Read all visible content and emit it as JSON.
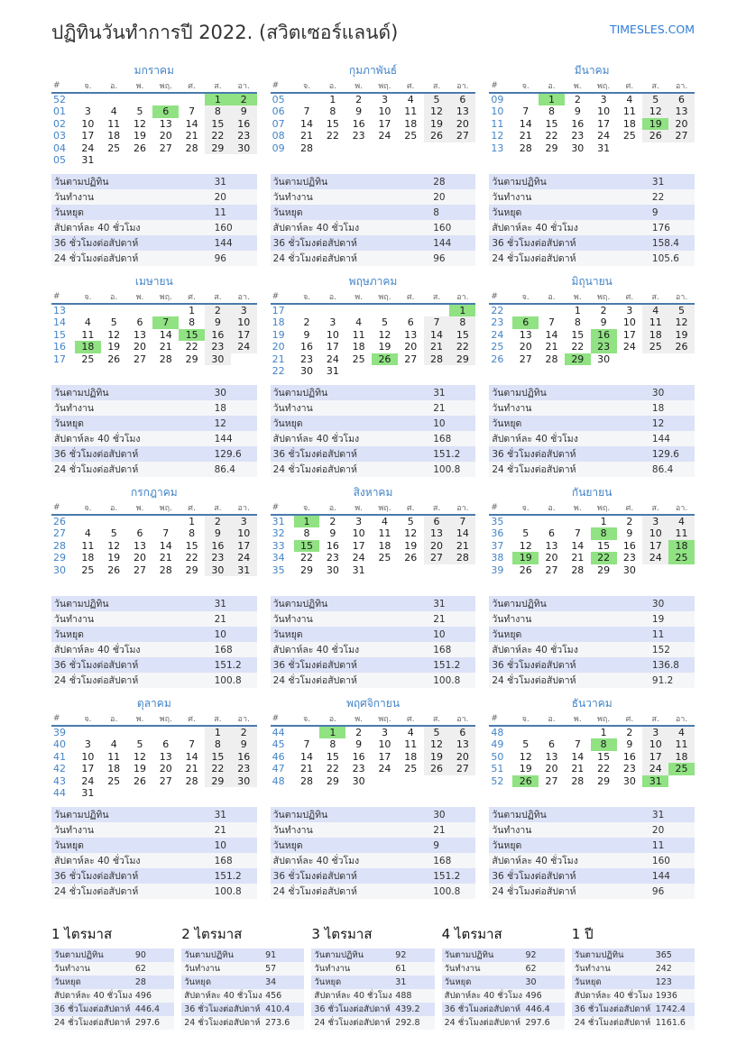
{
  "page": {
    "title": "ปฏิทินวันทำการปี 2022. (สวิตเซอร์แลนด์)",
    "brand": "TIMESLES.COM"
  },
  "colors": {
    "accent_blue": "#4384c6",
    "brand_blue": "#2e7cd9",
    "header_rule_blue": "#4a7aad",
    "holiday_green": "#90e283",
    "weekend_gray": "#efefef",
    "stat_row_alt": "#dce2f7"
  },
  "calendar": {
    "day_headers": [
      "#",
      "จ.",
      "อ.",
      "พ.",
      "พฤ.",
      "ศ.",
      "ส.",
      "อา."
    ],
    "stat_labels": [
      "วันตามปฏิทิน",
      "วันทำงาน",
      "วันหยุด",
      "สัปดาห์ละ 40 ชั่วโมง",
      "36 ชั่วโมงต่อสัปดาห์",
      "24 ชั่วโมงต่อสัปดาห์"
    ],
    "months": [
      {
        "name": "มกราคม",
        "hl": [
          1,
          2,
          6
        ],
        "stats": [
          31,
          20,
          11,
          160,
          144,
          96
        ],
        "weeks": [
          {
            "w": "52",
            "d": [
              0,
              0,
              0,
              0,
              0,
              1,
              2
            ]
          },
          {
            "w": "01",
            "d": [
              3,
              4,
              5,
              6,
              7,
              8,
              9
            ]
          },
          {
            "w": "02",
            "d": [
              10,
              11,
              12,
              13,
              14,
              15,
              16
            ]
          },
          {
            "w": "03",
            "d": [
              17,
              18,
              19,
              20,
              21,
              22,
              23
            ]
          },
          {
            "w": "04",
            "d": [
              24,
              25,
              26,
              27,
              28,
              29,
              30
            ]
          },
          {
            "w": "05",
            "d": [
              31,
              0,
              0,
              0,
              0,
              0,
              0
            ]
          }
        ]
      },
      {
        "name": "กุมภาพันธ์",
        "hl": [],
        "stats": [
          28,
          20,
          8,
          160,
          144,
          96
        ],
        "weeks": [
          {
            "w": "05",
            "d": [
              0,
              1,
              2,
              3,
              4,
              5,
              6
            ]
          },
          {
            "w": "06",
            "d": [
              7,
              8,
              9,
              10,
              11,
              12,
              13
            ]
          },
          {
            "w": "07",
            "d": [
              14,
              15,
              16,
              17,
              18,
              19,
              20
            ]
          },
          {
            "w": "08",
            "d": [
              21,
              22,
              23,
              24,
              25,
              26,
              27
            ]
          },
          {
            "w": "09",
            "d": [
              28,
              0,
              0,
              0,
              0,
              0,
              0
            ]
          }
        ]
      },
      {
        "name": "มีนาคม",
        "hl": [
          1,
          19
        ],
        "stats": [
          31,
          22,
          9,
          176,
          158.4,
          105.6
        ],
        "weeks": [
          {
            "w": "09",
            "d": [
              0,
              1,
              2,
              3,
              4,
              5,
              6
            ]
          },
          {
            "w": "10",
            "d": [
              7,
              8,
              9,
              10,
              11,
              12,
              13
            ]
          },
          {
            "w": "11",
            "d": [
              14,
              15,
              16,
              17,
              18,
              19,
              20
            ]
          },
          {
            "w": "12",
            "d": [
              21,
              22,
              23,
              24,
              25,
              26,
              27
            ]
          },
          {
            "w": "13",
            "d": [
              28,
              29,
              30,
              31,
              0,
              0,
              0
            ]
          }
        ]
      },
      {
        "name": "เมษายน",
        "hl": [
          7,
          15,
          18
        ],
        "stats": [
          30,
          18,
          12,
          144,
          129.6,
          86.4
        ],
        "weeks": [
          {
            "w": "13",
            "d": [
              0,
              0,
              0,
              0,
              1,
              2,
              3
            ]
          },
          {
            "w": "14",
            "d": [
              4,
              5,
              6,
              7,
              8,
              9,
              10
            ]
          },
          {
            "w": "15",
            "d": [
              11,
              12,
              13,
              14,
              15,
              16,
              17
            ]
          },
          {
            "w": "16",
            "d": [
              18,
              19,
              20,
              21,
              22,
              23,
              24
            ]
          },
          {
            "w": "17",
            "d": [
              25,
              26,
              27,
              28,
              29,
              30,
              0
            ]
          }
        ]
      },
      {
        "name": "พฤษภาคม",
        "hl": [
          1,
          26
        ],
        "stats": [
          31,
          21,
          10,
          168,
          151.2,
          100.8
        ],
        "weeks": [
          {
            "w": "17",
            "d": [
              0,
              0,
              0,
              0,
              0,
              0,
              1
            ]
          },
          {
            "w": "18",
            "d": [
              2,
              3,
              4,
              5,
              6,
              7,
              8
            ]
          },
          {
            "w": "19",
            "d": [
              9,
              10,
              11,
              12,
              13,
              14,
              15
            ]
          },
          {
            "w": "20",
            "d": [
              16,
              17,
              18,
              19,
              20,
              21,
              22
            ]
          },
          {
            "w": "21",
            "d": [
              23,
              24,
              25,
              26,
              27,
              28,
              29
            ]
          },
          {
            "w": "22",
            "d": [
              30,
              31,
              0,
              0,
              0,
              0,
              0
            ]
          }
        ]
      },
      {
        "name": "มิถุนายน",
        "hl": [
          6,
          16,
          23,
          29
        ],
        "stats": [
          30,
          18,
          12,
          144,
          129.6,
          86.4
        ],
        "weeks": [
          {
            "w": "22",
            "d": [
              0,
              0,
              1,
              2,
              3,
              4,
              5
            ]
          },
          {
            "w": "23",
            "d": [
              6,
              7,
              8,
              9,
              10,
              11,
              12
            ]
          },
          {
            "w": "24",
            "d": [
              13,
              14,
              15,
              16,
              17,
              18,
              19
            ]
          },
          {
            "w": "25",
            "d": [
              20,
              21,
              22,
              23,
              24,
              25,
              26
            ]
          },
          {
            "w": "26",
            "d": [
              27,
              28,
              29,
              30,
              0,
              0,
              0
            ]
          }
        ]
      },
      {
        "name": "กรกฎาคม",
        "hl": [],
        "stats": [
          31,
          21,
          10,
          168,
          151.2,
          100.8
        ],
        "weeks": [
          {
            "w": "26",
            "d": [
              0,
              0,
              0,
              0,
              1,
              2,
              3
            ]
          },
          {
            "w": "27",
            "d": [
              4,
              5,
              6,
              7,
              8,
              9,
              10
            ]
          },
          {
            "w": "28",
            "d": [
              11,
              12,
              13,
              14,
              15,
              16,
              17
            ]
          },
          {
            "w": "29",
            "d": [
              18,
              19,
              20,
              21,
              22,
              23,
              24
            ]
          },
          {
            "w": "30",
            "d": [
              25,
              26,
              27,
              28,
              29,
              30,
              31
            ]
          }
        ]
      },
      {
        "name": "สิงหาคม",
        "hl": [
          1,
          15
        ],
        "stats": [
          31,
          21,
          10,
          168,
          151.2,
          100.8
        ],
        "weeks": [
          {
            "w": "31",
            "d": [
              1,
              2,
              3,
              4,
              5,
              6,
              7
            ]
          },
          {
            "w": "32",
            "d": [
              8,
              9,
              10,
              11,
              12,
              13,
              14
            ]
          },
          {
            "w": "33",
            "d": [
              15,
              16,
              17,
              18,
              19,
              20,
              21
            ]
          },
          {
            "w": "34",
            "d": [
              22,
              23,
              24,
              25,
              26,
              27,
              28
            ]
          },
          {
            "w": "35",
            "d": [
              29,
              30,
              31,
              0,
              0,
              0,
              0
            ]
          }
        ]
      },
      {
        "name": "กันยายน",
        "hl": [
          8,
          18,
          19,
          22,
          25
        ],
        "stats": [
          30,
          19,
          11,
          152,
          136.8,
          91.2
        ],
        "weeks": [
          {
            "w": "35",
            "d": [
              0,
              0,
              0,
              1,
              2,
              3,
              4
            ]
          },
          {
            "w": "36",
            "d": [
              5,
              6,
              7,
              8,
              9,
              10,
              11
            ]
          },
          {
            "w": "37",
            "d": [
              12,
              13,
              14,
              15,
              16,
              17,
              18
            ]
          },
          {
            "w": "38",
            "d": [
              19,
              20,
              21,
              22,
              23,
              24,
              25
            ]
          },
          {
            "w": "39",
            "d": [
              26,
              27,
              28,
              29,
              30,
              0,
              0
            ]
          }
        ]
      },
      {
        "name": "ตุลาคม",
        "hl": [],
        "stats": [
          31,
          21,
          10,
          168,
          151.2,
          100.8
        ],
        "weeks": [
          {
            "w": "39",
            "d": [
              0,
              0,
              0,
              0,
              0,
              1,
              2
            ]
          },
          {
            "w": "40",
            "d": [
              3,
              4,
              5,
              6,
              7,
              8,
              9
            ]
          },
          {
            "w": "41",
            "d": [
              10,
              11,
              12,
              13,
              14,
              15,
              16
            ]
          },
          {
            "w": "42",
            "d": [
              17,
              18,
              19,
              20,
              21,
              22,
              23
            ]
          },
          {
            "w": "43",
            "d": [
              24,
              25,
              26,
              27,
              28,
              29,
              30
            ]
          },
          {
            "w": "44",
            "d": [
              31,
              0,
              0,
              0,
              0,
              0,
              0
            ]
          }
        ]
      },
      {
        "name": "พฤศจิกายน",
        "hl": [
          1
        ],
        "stats": [
          30,
          21,
          9,
          168,
          151.2,
          100.8
        ],
        "weeks": [
          {
            "w": "44",
            "d": [
              0,
              1,
              2,
              3,
              4,
              5,
              6
            ]
          },
          {
            "w": "45",
            "d": [
              7,
              8,
              9,
              10,
              11,
              12,
              13
            ]
          },
          {
            "w": "46",
            "d": [
              14,
              15,
              16,
              17,
              18,
              19,
              20
            ]
          },
          {
            "w": "47",
            "d": [
              21,
              22,
              23,
              24,
              25,
              26,
              27
            ]
          },
          {
            "w": "48",
            "d": [
              28,
              29,
              30,
              0,
              0,
              0,
              0
            ]
          }
        ]
      },
      {
        "name": "ธันวาคม",
        "hl": [
          8,
          25,
          26,
          31
        ],
        "stats": [
          31,
          20,
          11,
          160,
          144,
          96
        ],
        "weeks": [
          {
            "w": "48",
            "d": [
              0,
              0,
              0,
              1,
              2,
              3,
              4
            ]
          },
          {
            "w": "49",
            "d": [
              5,
              6,
              7,
              8,
              9,
              10,
              11
            ]
          },
          {
            "w": "50",
            "d": [
              12,
              13,
              14,
              15,
              16,
              17,
              18
            ]
          },
          {
            "w": "51",
            "d": [
              19,
              20,
              21,
              22,
              23,
              24,
              25
            ]
          },
          {
            "w": "52",
            "d": [
              26,
              27,
              28,
              29,
              30,
              31,
              0
            ]
          }
        ]
      }
    ],
    "summaries": [
      {
        "title": "1 ไตรมาส",
        "stats": [
          90,
          62,
          28,
          496,
          446.4,
          297.6
        ]
      },
      {
        "title": "2 ไตรมาส",
        "stats": [
          91,
          57,
          34,
          456,
          410.4,
          273.6
        ]
      },
      {
        "title": "3 ไตรมาส",
        "stats": [
          92,
          61,
          31,
          488,
          439.2,
          292.8
        ]
      },
      {
        "title": "4 ไตรมาส",
        "stats": [
          92,
          62,
          30,
          496,
          446.4,
          297.6
        ]
      },
      {
        "title": "1 ปี",
        "stats": [
          365,
          242,
          123,
          1936,
          1742.4,
          1161.6
        ]
      }
    ]
  }
}
